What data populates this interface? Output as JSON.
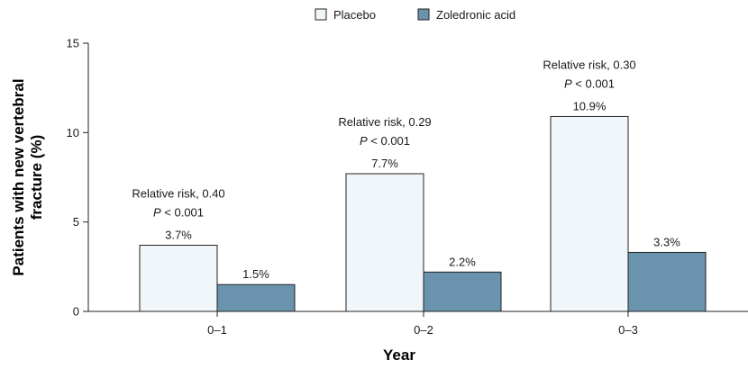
{
  "chart_data": {
    "type": "bar",
    "categories": [
      "0–1",
      "0–2",
      "0–3"
    ],
    "series": [
      {
        "name": "Placebo",
        "values": [
          3.7,
          7.7,
          10.9
        ],
        "labels": [
          "3.7%",
          "7.7%",
          "10.9%"
        ],
        "color": "#f1f6fb"
      },
      {
        "name": "Zoledronic acid",
        "values": [
          1.5,
          2.2,
          3.3
        ],
        "labels": [
          "1.5%",
          "2.2%",
          "3.3%"
        ],
        "color": "#6a93ad"
      }
    ],
    "annotations": [
      {
        "rr": "Relative risk, 0.40",
        "p_italic": "P",
        "p_rest": " < 0.001"
      },
      {
        "rr": "Relative risk, 0.29",
        "p_italic": "P",
        "p_rest": " < 0.001"
      },
      {
        "rr": "Relative risk, 0.30",
        "p_italic": "P",
        "p_rest": " < 0.001"
      }
    ],
    "xlabel": "Year",
    "ylabel_lines": [
      "Patients with new vertebral",
      "fracture (%)"
    ],
    "ylim": [
      0,
      15
    ],
    "yticks": [
      0,
      5,
      10,
      15
    ],
    "grid": false,
    "legend_position": "top-center"
  }
}
